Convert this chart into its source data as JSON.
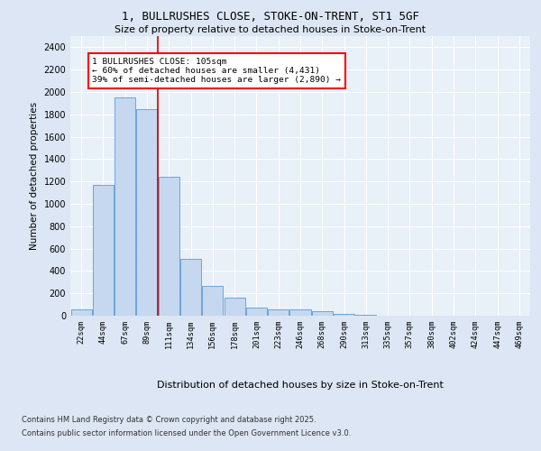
{
  "title1": "1, BULLRUSHES CLOSE, STOKE-ON-TRENT, ST1 5GF",
  "title2": "Size of property relative to detached houses in Stoke-on-Trent",
  "xlabel": "Distribution of detached houses by size in Stoke-on-Trent",
  "ylabel": "Number of detached properties",
  "bar_labels": [
    "22sqm",
    "44sqm",
    "67sqm",
    "89sqm",
    "111sqm",
    "134sqm",
    "156sqm",
    "178sqm",
    "201sqm",
    "223sqm",
    "246sqm",
    "268sqm",
    "290sqm",
    "313sqm",
    "335sqm",
    "357sqm",
    "380sqm",
    "402sqm",
    "424sqm",
    "447sqm",
    "469sqm"
  ],
  "bar_values": [
    55,
    1170,
    1950,
    1850,
    1240,
    510,
    270,
    160,
    75,
    55,
    55,
    40,
    15,
    5,
    3,
    2,
    1,
    1,
    1,
    1,
    1
  ],
  "bar_color": "#c5d8f0",
  "bar_edge_color": "#5b9bd5",
  "vline_x_idx": 4,
  "vline_color": "#cc0000",
  "annotation_text": "1 BULLRUSHES CLOSE: 105sqm\n← 60% of detached houses are smaller (4,431)\n39% of semi-detached houses are larger (2,890) →",
  "ylim": [
    0,
    2500
  ],
  "yticks": [
    0,
    200,
    400,
    600,
    800,
    1000,
    1200,
    1400,
    1600,
    1800,
    2000,
    2200,
    2400
  ],
  "footer1": "Contains HM Land Registry data © Crown copyright and database right 2025.",
  "footer2": "Contains public sector information licensed under the Open Government Licence v3.0.",
  "bg_color": "#dce6f4",
  "plot_bg_color": "#e8f0f8"
}
